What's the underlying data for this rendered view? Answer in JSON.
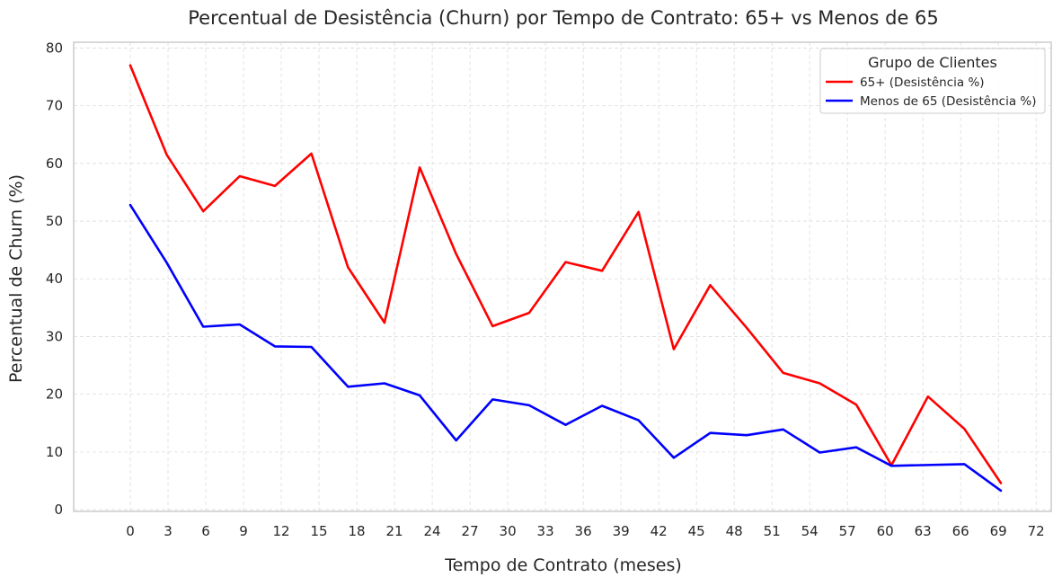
{
  "chart_data": {
    "type": "line",
    "title": "Percentual de Desistência (Churn) por Tempo de Contrato: 65+ vs Menos de 65",
    "xlabel": "Tempo de Contrato (meses)",
    "ylabel": "Percentual de Churn (%)",
    "xlim": [
      -4.5,
      73.2
    ],
    "ylim": [
      -0.3,
      81
    ],
    "x_ticks": [
      0,
      3,
      6,
      9,
      12,
      15,
      18,
      21,
      24,
      27,
      30,
      33,
      36,
      39,
      42,
      45,
      48,
      51,
      54,
      57,
      60,
      63,
      66,
      69,
      72
    ],
    "y_ticks": [
      0,
      10,
      20,
      30,
      40,
      50,
      60,
      70,
      80
    ],
    "grid": true,
    "legend": {
      "title": "Grupo de Clientes",
      "placement": "top-right"
    },
    "series": [
      {
        "name": "65+ (Desistência %)",
        "color": "#ff0000",
        "x": [
          0,
          2.9,
          5.8,
          8.7,
          11.5,
          14.4,
          17.3,
          20.2,
          23.0,
          25.9,
          28.8,
          31.7,
          34.6,
          37.5,
          40.4,
          43.2,
          46.1,
          49.0,
          51.9,
          54.8,
          57.7,
          60.5,
          63.4,
          66.3,
          69.2
        ],
        "y": [
          77.0,
          61.5,
          51.7,
          57.8,
          56.1,
          61.7,
          42.0,
          32.4,
          59.3,
          44.3,
          31.8,
          34.1,
          42.9,
          41.4,
          51.6,
          27.8,
          38.9,
          31.5,
          23.7,
          21.9,
          18.2,
          7.7,
          19.6,
          14.0,
          4.6
        ]
      },
      {
        "name": "Menos de 65 (Desistência %)",
        "color": "#0000ff",
        "x": [
          0,
          2.9,
          5.8,
          8.7,
          11.5,
          14.4,
          17.3,
          20.2,
          23.0,
          25.9,
          28.8,
          31.7,
          34.6,
          37.5,
          40.4,
          43.2,
          46.1,
          49.0,
          51.9,
          54.8,
          57.7,
          60.5,
          66.3,
          69.2
        ],
        "y": [
          52.8,
          42.8,
          31.7,
          32.1,
          28.3,
          28.2,
          21.3,
          21.9,
          19.8,
          12.0,
          19.1,
          18.1,
          14.7,
          18.0,
          15.5,
          9.0,
          13.3,
          12.9,
          13.9,
          9.9,
          10.8,
          7.6,
          7.9,
          3.3
        ]
      }
    ]
  }
}
